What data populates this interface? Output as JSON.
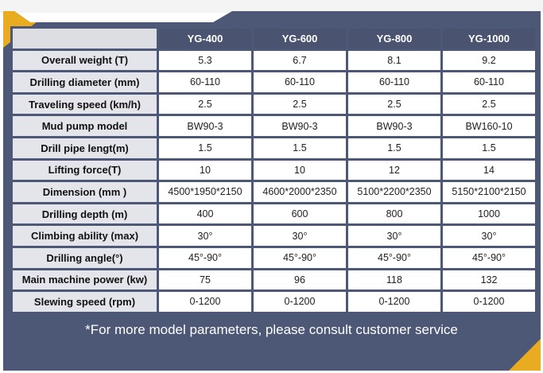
{
  "table": {
    "headers": [
      "YG-400",
      "YG-600",
      "YG-800",
      "YG-1000"
    ],
    "rows": [
      {
        "label": "Overall weight (T)",
        "values": [
          "5.3",
          "6.7",
          "8.1",
          "9.2"
        ]
      },
      {
        "label": "Drilling diameter (mm)",
        "values": [
          "60-110",
          "60-110",
          "60-110",
          "60-110"
        ]
      },
      {
        "label": "Traveling speed (km/h)",
        "values": [
          "2.5",
          "2.5",
          "2.5",
          "2.5"
        ]
      },
      {
        "label": "Mud pump model",
        "values": [
          "BW90-3",
          "BW90-3",
          "BW90-3",
          "BW160-10"
        ]
      },
      {
        "label": "Drill pipe lengt(m)",
        "values": [
          "1.5",
          "1.5",
          "1.5",
          "1.5"
        ]
      },
      {
        "label": "Lifting force(T)",
        "values": [
          "10",
          "10",
          "12",
          "14"
        ]
      },
      {
        "label": "Dimension (mm )",
        "values": [
          "4500*1950*2150",
          "4600*2000*2350",
          "5100*2200*2350",
          "5150*2100*2150"
        ]
      },
      {
        "label": "Drilling depth (m)",
        "values": [
          "400",
          "600",
          "800",
          "1000"
        ]
      },
      {
        "label": "Climbing ability (max)",
        "values": [
          "30°",
          "30°",
          "30°",
          "30°"
        ]
      },
      {
        "label": "Drilling angle(°)",
        "values": [
          "45°-90°",
          "45°-90°",
          "45°-90°",
          "45°-90°"
        ]
      },
      {
        "label": "Main machine power (kw)",
        "values": [
          "75",
          "96",
          "118",
          "132"
        ]
      },
      {
        "label": "Slewing speed (rpm)",
        "values": [
          "0-1200",
          "0-1200",
          "0-1200",
          "0-1200"
        ]
      }
    ]
  },
  "footer_note": "*For more model parameters, please consult customer service",
  "colors": {
    "frame": "#4d5776",
    "accent": "#e9ab1f",
    "header_bg": "#4a5470",
    "label_bg": "#e3e5ea"
  }
}
